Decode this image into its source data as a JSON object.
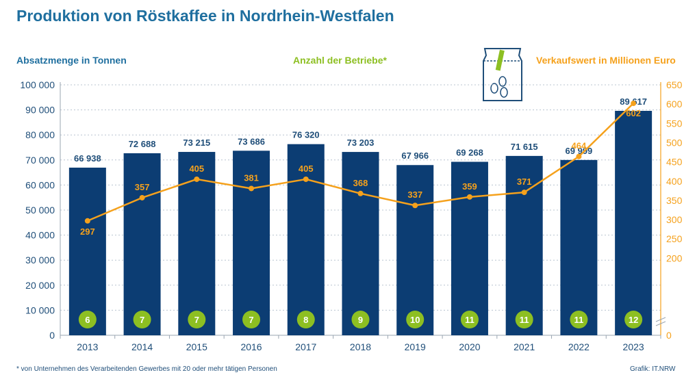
{
  "title": "Produktion von Röstkaffee in Nordrhein-Westfalen",
  "labels": {
    "left_axis": "Absatzmenge in Tonnen",
    "middle": "Anzahl der Betriebe*",
    "right_axis": "Verkaufswert in Millionen Euro"
  },
  "footnote": "* von Unternehmen des Verarbeitenden Gewerbes mit 20 oder mehr tätigen Personen",
  "source": "Grafik: IT.NRW",
  "icons": {
    "bag": "coffee-bag-icon"
  },
  "colors": {
    "bar": "#0c3d73",
    "line": "#f5a11c",
    "circle": "#8dbf22",
    "title": "#1f6f9f"
  },
  "chart_data": {
    "type": "bar",
    "categories": [
      "2013",
      "2014",
      "2015",
      "2016",
      "2017",
      "2018",
      "2019",
      "2020",
      "2021",
      "2022",
      "2023"
    ],
    "series": [
      {
        "name": "Absatzmenge in Tonnen",
        "type": "bar",
        "values": [
          66938,
          72688,
          73215,
          73686,
          76320,
          73203,
          67966,
          69268,
          71615,
          69999,
          89617
        ],
        "labels": [
          "66 938",
          "72 688",
          "73 215",
          "73 686",
          "76 320",
          "73 203",
          "67 966",
          "69 268",
          "71 615",
          "69 999",
          "89 617"
        ]
      },
      {
        "name": "Verkaufswert in Millionen Euro",
        "type": "line",
        "values": [
          297,
          357,
          405,
          381,
          405,
          368,
          337,
          359,
          371,
          464,
          602
        ]
      },
      {
        "name": "Anzahl der Betriebe*",
        "type": "circle-labels",
        "values": [
          6,
          7,
          7,
          7,
          8,
          9,
          10,
          11,
          11,
          11,
          12
        ]
      }
    ],
    "y_left": {
      "min": 0,
      "max": 100000,
      "ticks": [
        "0",
        "10 000",
        "20 000",
        "30 000",
        "40 000",
        "50 000",
        "60 000",
        "70 000",
        "80 000",
        "90 000",
        "100 000"
      ]
    },
    "y_right": {
      "min": 0,
      "max": 650,
      "ticks": [
        "0",
        "200",
        "250",
        "300",
        "350",
        "400",
        "450",
        "500",
        "550",
        "600",
        "650"
      ]
    },
    "grid": true
  }
}
